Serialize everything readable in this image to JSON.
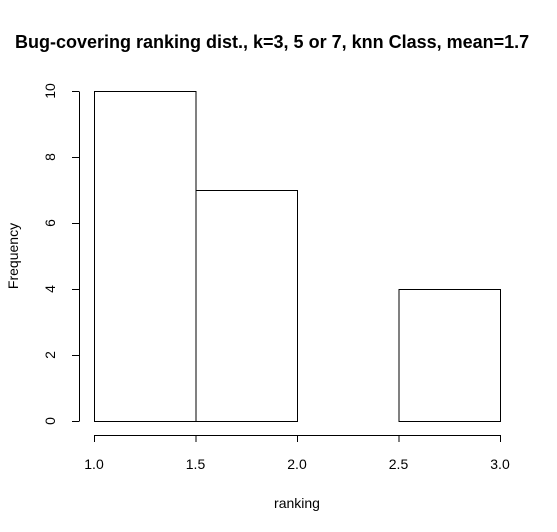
{
  "chart_data": {
    "type": "bar",
    "title": "Bug-covering ranking dist., k=3, 5 or 7, knn Class, mean=1.7",
    "xlabel": "ranking",
    "ylabel": "Frequency",
    "bins": [
      {
        "start": 1.0,
        "end": 1.5,
        "count": 10
      },
      {
        "start": 1.5,
        "end": 2.0,
        "count": 7
      },
      {
        "start": 2.0,
        "end": 2.5,
        "count": 0
      },
      {
        "start": 2.5,
        "end": 3.0,
        "count": 4
      }
    ],
    "xlim": [
      1.0,
      3.0
    ],
    "ylim": [
      0,
      10
    ],
    "x_ticks": [
      "1.0",
      "1.5",
      "2.0",
      "2.5",
      "3.0"
    ],
    "y_ticks": [
      "0",
      "2",
      "4",
      "6",
      "8",
      "10"
    ],
    "grid": false,
    "bar_fill": "#ffffff",
    "bar_stroke": "#000000"
  }
}
